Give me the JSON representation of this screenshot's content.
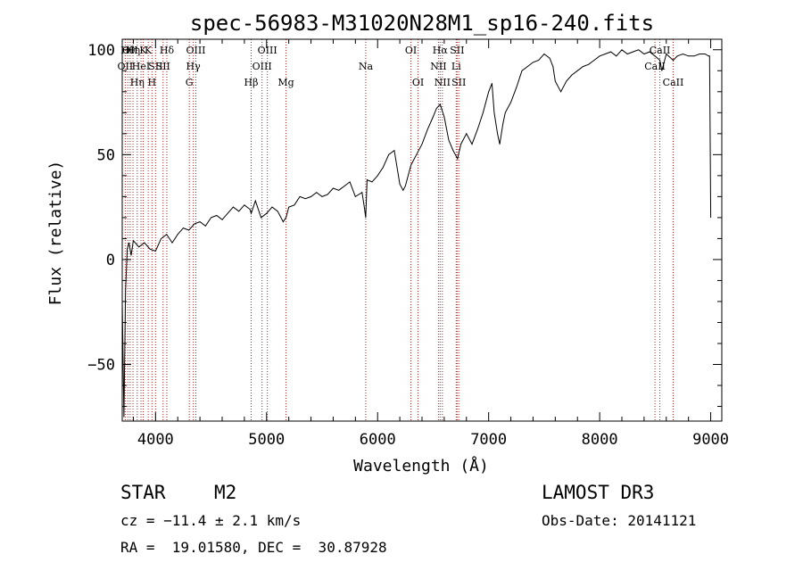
{
  "chart_data": {
    "type": "line",
    "title": "spec-56983-M31020N28M1_sp16-240.fits",
    "xlabel": "Wavelength (Å)",
    "ylabel": "Flux (relative)",
    "xlim": [
      3700,
      9100
    ],
    "ylim": [
      -77,
      105
    ],
    "xticks": [
      4000,
      5000,
      6000,
      7000,
      8000,
      9000
    ],
    "yticks": [
      -50,
      0,
      50,
      100
    ],
    "grid": false,
    "series": [
      {
        "name": "flux",
        "x": [
          3700,
          3715,
          3730,
          3745,
          3760,
          3780,
          3800,
          3850,
          3900,
          3950,
          4000,
          4050,
          4100,
          4150,
          4200,
          4250,
          4300,
          4350,
          4400,
          4450,
          4500,
          4550,
          4600,
          4650,
          4700,
          4750,
          4800,
          4850,
          4861,
          4900,
          4950,
          5000,
          5050,
          5100,
          5150,
          5175,
          5200,
          5250,
          5300,
          5350,
          5400,
          5450,
          5500,
          5550,
          5600,
          5650,
          5700,
          5750,
          5800,
          5860,
          5880,
          5893,
          5905,
          5950,
          6000,
          6050,
          6100,
          6150,
          6200,
          6230,
          6250,
          6300,
          6350,
          6400,
          6450,
          6500,
          6530,
          6563,
          6600,
          6640,
          6680,
          6720,
          6750,
          6800,
          6850,
          6900,
          6950,
          7000,
          7030,
          7050,
          7080,
          7100,
          7130,
          7150,
          7200,
          7250,
          7300,
          7350,
          7400,
          7450,
          7500,
          7550,
          7580,
          7600,
          7650,
          7700,
          7750,
          7800,
          7850,
          7900,
          7950,
          8000,
          8050,
          8100,
          8150,
          8200,
          8250,
          8300,
          8350,
          8400,
          8450,
          8498,
          8542,
          8560,
          8600,
          8662,
          8700,
          8750,
          8800,
          8850,
          8900,
          8950,
          8980,
          8990,
          9000
        ],
        "values": [
          -20,
          -75,
          -15,
          5,
          8,
          2,
          9,
          6,
          8,
          5,
          4,
          10,
          12,
          8,
          12,
          15,
          14,
          17,
          18,
          16,
          20,
          21,
          19,
          22,
          25,
          23,
          26,
          24,
          22,
          28,
          20,
          22,
          25,
          23,
          18,
          20,
          25,
          26,
          30,
          29,
          30,
          32,
          30,
          31,
          34,
          33,
          35,
          37,
          30,
          32,
          25,
          20,
          38,
          37,
          40,
          44,
          50,
          52,
          36,
          33,
          35,
          45,
          50,
          55,
          62,
          68,
          72,
          74,
          68,
          57,
          52,
          48,
          55,
          60,
          55,
          62,
          70,
          80,
          84,
          70,
          60,
          55,
          65,
          70,
          75,
          82,
          90,
          92,
          94,
          95,
          98,
          96,
          92,
          85,
          80,
          85,
          88,
          90,
          92,
          93,
          95,
          97,
          98,
          99,
          97,
          100,
          98,
          99,
          100,
          98,
          99,
          97,
          95,
          90,
          98,
          95,
          97,
          98,
          97,
          97,
          98,
          98,
          97,
          97,
          20
        ],
        "color": "#000000"
      }
    ],
    "lines": [
      {
        "wl": 3727,
        "label": "OII",
        "row": 2
      },
      {
        "wl": 3750,
        "label": "Hθ",
        "row": 1
      },
      {
        "wl": 3771,
        "label": "OII",
        "row": 1
      },
      {
        "wl": 3797,
        "label": "Hη",
        "row": 1
      },
      {
        "wl": 3835,
        "label": "Hη",
        "row": 3
      },
      {
        "wl": 3869,
        "label": "HeI",
        "row": 2
      },
      {
        "wl": 3889,
        "label": "K",
        "row": 1
      },
      {
        "wl": 3934,
        "label": "K",
        "row": 1
      },
      {
        "wl": 3968,
        "label": "H",
        "row": 3
      },
      {
        "wl": 4000,
        "label": "SII",
        "row": 2
      },
      {
        "wl": 4068,
        "label": "SII",
        "row": 2
      },
      {
        "wl": 4102,
        "label": "Hδ",
        "row": 1
      },
      {
        "wl": 4304,
        "label": "G",
        "row": 3
      },
      {
        "wl": 4340,
        "label": "Hγ",
        "row": 2
      },
      {
        "wl": 4363,
        "label": "OIII",
        "row": 1
      },
      {
        "wl": 4861,
        "label": "Hβ",
        "row": 3
      },
      {
        "wl": 4959,
        "label": "OIII",
        "row": 2
      },
      {
        "wl": 5007,
        "label": "OIII",
        "row": 1
      },
      {
        "wl": 5175,
        "label": "Mg",
        "row": 3
      },
      {
        "wl": 5893,
        "label": "Na",
        "row": 2
      },
      {
        "wl": 6300,
        "label": "OI",
        "row": 1
      },
      {
        "wl": 6364,
        "label": "OI",
        "row": 3
      },
      {
        "wl": 6548,
        "label": "NII",
        "row": 2
      },
      {
        "wl": 6563,
        "label": "Hα",
        "row": 1
      },
      {
        "wl": 6583,
        "label": "NII",
        "row": 3
      },
      {
        "wl": 6708,
        "label": "Li",
        "row": 2
      },
      {
        "wl": 6716,
        "label": "SII",
        "row": 1
      },
      {
        "wl": 6731,
        "label": "SII",
        "row": 3
      },
      {
        "wl": 8498,
        "label": "CaII",
        "row": 2
      },
      {
        "wl": 8542,
        "label": "CaII",
        "row": 1
      },
      {
        "wl": 8662,
        "label": "CaII",
        "row": 3
      }
    ]
  },
  "info": {
    "class": "STAR",
    "subclass": "M2",
    "survey": "LAMOST DR3",
    "cz": "cz = −11.4 ± 2.1 km/s",
    "obs_date": "Obs-Date: 20141121",
    "coords": "RA =  19.01580, DEC =  30.87928"
  }
}
